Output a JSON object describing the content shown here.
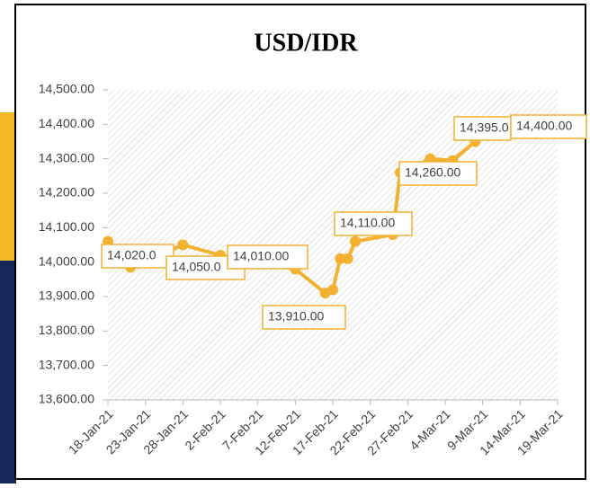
{
  "chart_data": {
    "type": "line",
    "title": "USD/IDR",
    "x": [
      "2021-01-18",
      "2021-01-21",
      "2021-01-28",
      "2021-02-02",
      "2021-02-12",
      "2021-02-16",
      "2021-02-17",
      "2021-02-18",
      "2021-02-19",
      "2021-02-20",
      "2021-02-25",
      "2021-02-26",
      "2021-03-02",
      "2021-03-05",
      "2021-03-08"
    ],
    "series": [
      {
        "name": "USD/IDR",
        "color": "#f2b130",
        "values": [
          14060,
          13985,
          14050,
          14020,
          13980,
          13910,
          13920,
          14010,
          14010,
          14060,
          14080,
          14260,
          14300,
          14295,
          14350
        ]
      }
    ],
    "annotations": [
      "14,020.0",
      "14,050.0",
      "14,010.00",
      "13,910.00",
      "14,110.00",
      "14,260.00",
      "14,395.0",
      "14,400.00"
    ],
    "xlim": [
      "2021-01-18",
      "2021-03-19"
    ],
    "xticks": [
      {
        "value": "2021-01-18",
        "label": "18-Jan-21"
      },
      {
        "value": "2021-01-23",
        "label": "23-Jan-21"
      },
      {
        "value": "2021-01-28",
        "label": "28-Jan-21"
      },
      {
        "value": "2021-02-02",
        "label": "2-Feb-21"
      },
      {
        "value": "2021-02-07",
        "label": "7-Feb-21"
      },
      {
        "value": "2021-02-12",
        "label": "12-Feb-21"
      },
      {
        "value": "2021-02-17",
        "label": "17-Feb-21"
      },
      {
        "value": "2021-02-22",
        "label": "22-Feb-21"
      },
      {
        "value": "2021-02-27",
        "label": "27-Feb-21"
      },
      {
        "value": "2021-03-04",
        "label": "4-Mar-21"
      },
      {
        "value": "2021-03-09",
        "label": "9-Mar-21"
      },
      {
        "value": "2021-03-14",
        "label": "14-Mar-21"
      },
      {
        "value": "2021-03-19",
        "label": "19-Mar-21"
      }
    ],
    "ylim": [
      13600,
      14500
    ],
    "yticks": [
      {
        "value": 13600,
        "label": "13,600.00"
      },
      {
        "value": 13700,
        "label": "13,700.00"
      },
      {
        "value": 13800,
        "label": "13,800.00"
      },
      {
        "value": 13900,
        "label": "13,900.00"
      },
      {
        "value": 14000,
        "label": "14,000.00"
      },
      {
        "value": 14100,
        "label": "14,100.00"
      },
      {
        "value": 14200,
        "label": "14,200.00"
      },
      {
        "value": 14300,
        "label": "14,300.00"
      },
      {
        "value": 14400,
        "label": "14,400.00"
      },
      {
        "value": 14500,
        "label": "14,500.00"
      }
    ]
  }
}
